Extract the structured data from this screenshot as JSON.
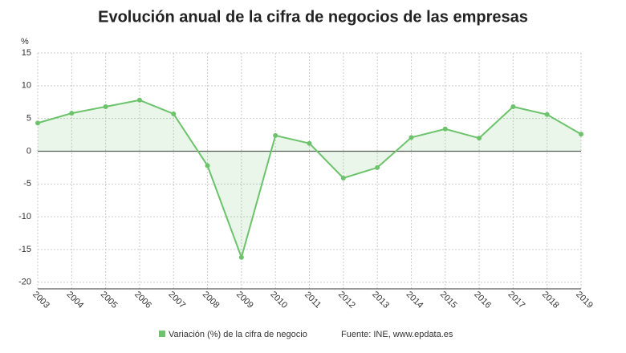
{
  "chart_data": {
    "type": "line",
    "title": "Evolución anual de la cifra de negocios de las empresas",
    "y_label": "%",
    "x": [
      2003,
      2004,
      2005,
      2006,
      2007,
      2008,
      2009,
      2010,
      2011,
      2012,
      2013,
      2014,
      2015,
      2016,
      2017,
      2018,
      2019
    ],
    "series": [
      {
        "name": "Variación (%) de la cifra de negocio",
        "color": "#6cc36c",
        "values": [
          4.3,
          5.8,
          6.8,
          7.8,
          5.7,
          -2.2,
          -16.2,
          2.4,
          1.2,
          -4.1,
          -2.5,
          2.1,
          3.4,
          2.0,
          6.8,
          5.6,
          2.6
        ]
      }
    ],
    "xlim": [
      2003,
      2019
    ],
    "xticks": [
      2003,
      2004,
      2005,
      2006,
      2007,
      2008,
      2009,
      2010,
      2011,
      2012,
      2013,
      2014,
      2015,
      2016,
      2017,
      2018,
      2019
    ],
    "ylim": [
      -21,
      15
    ],
    "yticks": [
      15,
      10,
      5,
      0,
      -5,
      -10,
      -15,
      -20
    ],
    "grid": true,
    "source": "Fuente: INE, www.epdata.es"
  }
}
